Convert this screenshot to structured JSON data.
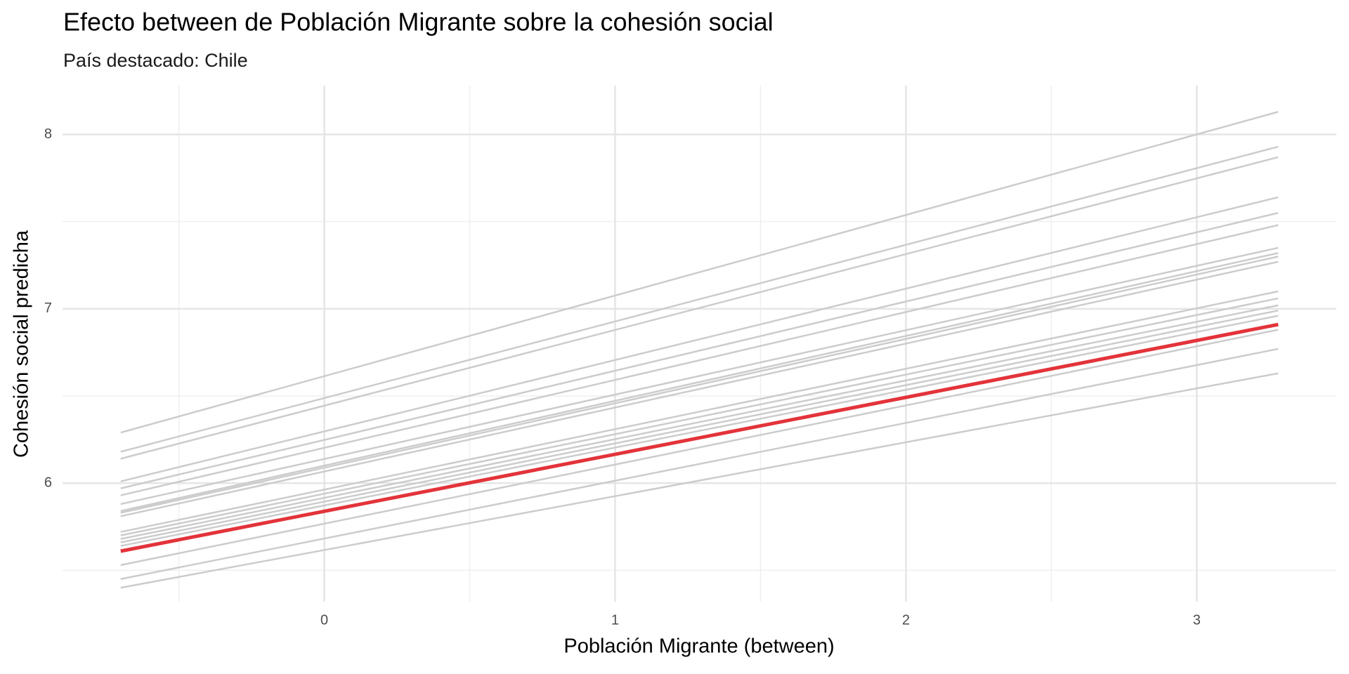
{
  "chart_data": {
    "type": "line",
    "title": "Efecto between de Población Migrante sobre la cohesión social",
    "subtitle": "País destacado: Chile",
    "x_label": "Población Migrante (between)",
    "y_label": "Cohesión social predicha",
    "x": [
      -0.7,
      3.28
    ],
    "series": [
      {
        "color": "#cccccc",
        "linewidth": 1,
        "values": [
          6.29,
          8.13
        ]
      },
      {
        "color": "#cccccc",
        "linewidth": 1,
        "values": [
          6.18,
          7.93
        ]
      },
      {
        "color": "#cccccc",
        "linewidth": 1,
        "values": [
          6.14,
          7.87
        ]
      },
      {
        "color": "#cccccc",
        "linewidth": 1,
        "values": [
          6.01,
          7.64
        ]
      },
      {
        "color": "#cccccc",
        "linewidth": 1,
        "values": [
          5.97,
          7.55
        ]
      },
      {
        "color": "#cccccc",
        "linewidth": 1,
        "values": [
          5.93,
          7.48
        ]
      },
      {
        "color": "#cccccc",
        "linewidth": 1,
        "values": [
          5.88,
          7.35
        ]
      },
      {
        "color": "#cccccc",
        "linewidth": 1,
        "values": [
          5.84,
          7.32
        ]
      },
      {
        "color": "#cccccc",
        "linewidth": 1,
        "values": [
          5.83,
          7.3
        ]
      },
      {
        "color": "#cccccc",
        "linewidth": 1,
        "values": [
          5.81,
          7.27
        ]
      },
      {
        "color": "#cccccc",
        "linewidth": 1,
        "values": [
          5.72,
          7.1
        ]
      },
      {
        "color": "#cccccc",
        "linewidth": 1,
        "values": [
          5.7,
          7.06
        ]
      },
      {
        "color": "#cccccc",
        "linewidth": 1,
        "values": [
          5.68,
          7.02
        ]
      },
      {
        "color": "#cccccc",
        "linewidth": 1,
        "values": [
          5.66,
          6.99
        ]
      },
      {
        "color": "#cccccc",
        "linewidth": 1,
        "values": [
          5.64,
          6.96
        ]
      },
      {
        "color": "#cccccc",
        "linewidth": 1,
        "values": [
          5.53,
          6.88
        ]
      },
      {
        "color": "#cccccc",
        "linewidth": 1,
        "values": [
          5.45,
          6.77
        ]
      },
      {
        "color": "#cccccc",
        "linewidth": 1,
        "values": [
          5.4,
          6.63
        ]
      },
      {
        "color": "#e3333a",
        "linewidth": 2,
        "values": [
          5.61,
          6.91
        ]
      }
    ],
    "xlim": [
      -0.9,
      3.48
    ],
    "ylim": [
      5.32,
      8.28
    ],
    "xticks": [
      0,
      1,
      2,
      3
    ],
    "yticks": [
      6,
      7,
      8
    ],
    "xminor": [
      -0.5,
      0.5,
      1.5,
      2.5
    ],
    "yminor": [
      5.5,
      6.5,
      7.5
    ],
    "grid": true
  }
}
